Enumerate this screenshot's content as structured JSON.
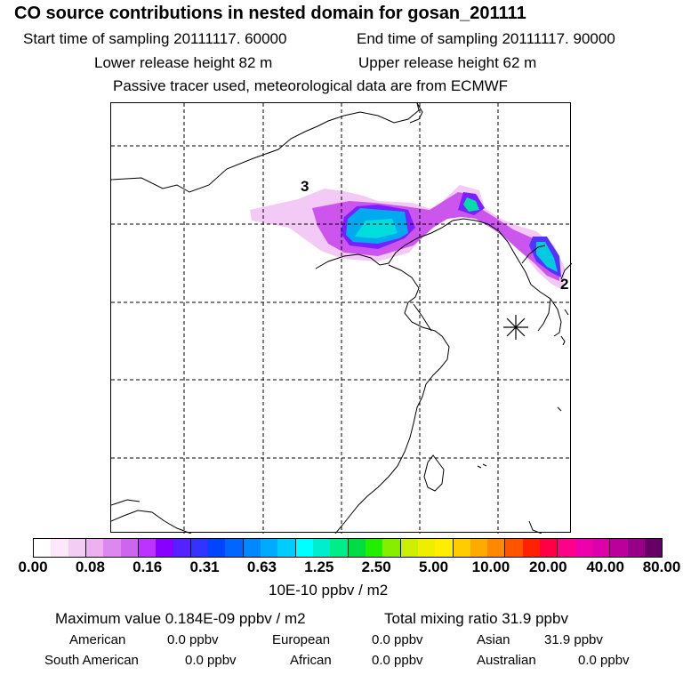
{
  "header": {
    "title": "CO  source contributions in nested domain for gosan_201111",
    "start_time": "Start time of sampling 20111117. 60000",
    "end_time": "End time of sampling 20111117. 90000",
    "lower_height": "Lower release height   82 m",
    "upper_height": "Upper release height   62 m",
    "tracer_note": "Passive tracer used, meteorological data are from ECMWF"
  },
  "map": {
    "labels": {
      "source_3": "3",
      "source_2": "2"
    },
    "receptor_marker": "asterisk-marker",
    "grid": "dashed"
  },
  "colorbar": {
    "colors": [
      "#ffffff",
      "#fbe8fb",
      "#f4cdf5",
      "#eeb0f0",
      "#dd88ee",
      "#cc66ee",
      "#bb33ff",
      "#8800ff",
      "#5522ff",
      "#3333ff",
      "#0044ff",
      "#0066ff",
      "#0088ff",
      "#00aaff",
      "#00ccff",
      "#00ffff",
      "#00eecc",
      "#00ee88",
      "#00dd44",
      "#22ee00",
      "#88ee00",
      "#ccee00",
      "#eeee00",
      "#ffee00",
      "#ffcc00",
      "#ffaa00",
      "#ff8800",
      "#ff5500",
      "#ff2200",
      "#ff0044",
      "#ff0088",
      "#ee00aa",
      "#dd00aa",
      "#bb0099",
      "#990088",
      "#660066"
    ],
    "ticks": [
      "0.00",
      "0.08",
      "0.16",
      "0.31",
      "0.63",
      "1.25",
      "2.50",
      "5.00",
      "10.00",
      "20.00",
      "40.00",
      "80.00"
    ],
    "units": "10E-10 ppbv / m2"
  },
  "footer": {
    "max_value": "Maximum value  0.184E-09 ppbv / m2",
    "total_mixing": "Total mixing ratio       31.9 ppbv",
    "american_label": "American",
    "american_value": "0.0 ppbv",
    "european_label": "European",
    "european_value": "0.0 ppbv",
    "asian_label": "Asian",
    "asian_value": "31.9 ppbv",
    "south_american_label": "South American",
    "south_american_value": "0.0 ppbv",
    "african_label": "African",
    "african_value": "0.0 ppbv",
    "australian_label": "Australian",
    "australian_value": "0.0 ppbv"
  }
}
